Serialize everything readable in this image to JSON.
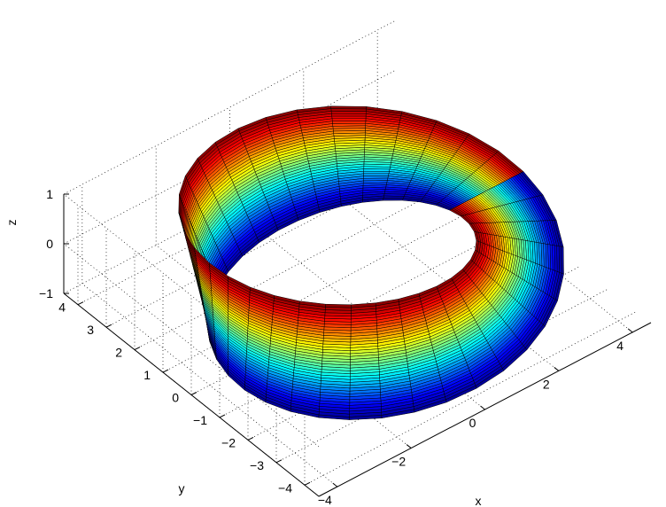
{
  "chart_data": {
    "type": "surface3d",
    "surface": "mobius-strip",
    "colormap": "jet",
    "colormap_stops": [
      "#00008f",
      "#0000ff",
      "#00ffff",
      "#ffff00",
      "#ff0000",
      "#800000"
    ],
    "edge_color": "#000000",
    "grid": true,
    "box": false,
    "view": {
      "azimuth_deg": -37.5,
      "elevation_deg": 50
    },
    "parameters": {
      "ring_radius": 3.5,
      "strip_half_width": 1,
      "angle_range_deg": [
        0,
        360
      ],
      "angle_segments": 36,
      "width_segments": 40
    },
    "axes": {
      "x": {
        "label": "x",
        "range": [
          -4.5,
          4.5
        ],
        "ticks": [
          -4,
          -2,
          0,
          2,
          4
        ],
        "tick_labels": [
          "−4",
          "−2",
          "0",
          "2",
          "4"
        ]
      },
      "y": {
        "label": "y",
        "range": [
          -4.5,
          4.5
        ],
        "ticks": [
          -4,
          -3,
          -2,
          -1,
          0,
          1,
          2,
          3,
          4
        ],
        "tick_labels": [
          "−4",
          "−3",
          "−2",
          "−1",
          "0",
          "1",
          "2",
          "3",
          "4"
        ]
      },
      "z": {
        "label": "z",
        "range": [
          -1,
          1
        ],
        "ticks": [
          -1,
          0,
          1
        ],
        "tick_labels": [
          "−1",
          "0",
          "1"
        ]
      }
    }
  }
}
